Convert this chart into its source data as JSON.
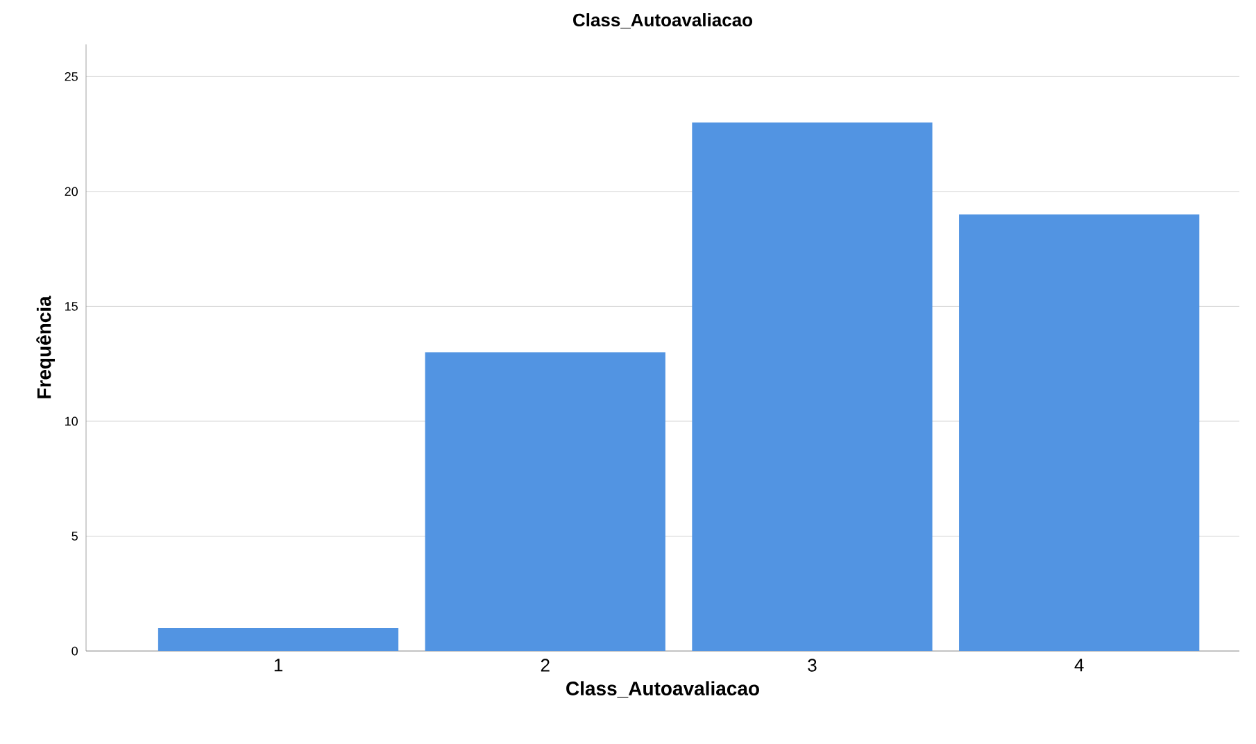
{
  "chart_data": {
    "type": "bar",
    "title": "Class_Autoavaliacao",
    "xlabel": "Class_Autoavaliacao",
    "ylabel": "Frequência",
    "categories": [
      "1",
      "2",
      "3",
      "4"
    ],
    "values": [
      1,
      13,
      23,
      19
    ],
    "color": "#5294e2",
    "ylim": [
      0,
      26.4
    ],
    "yticks": [
      0,
      5,
      10,
      15,
      20,
      25
    ],
    "grid": "y"
  }
}
